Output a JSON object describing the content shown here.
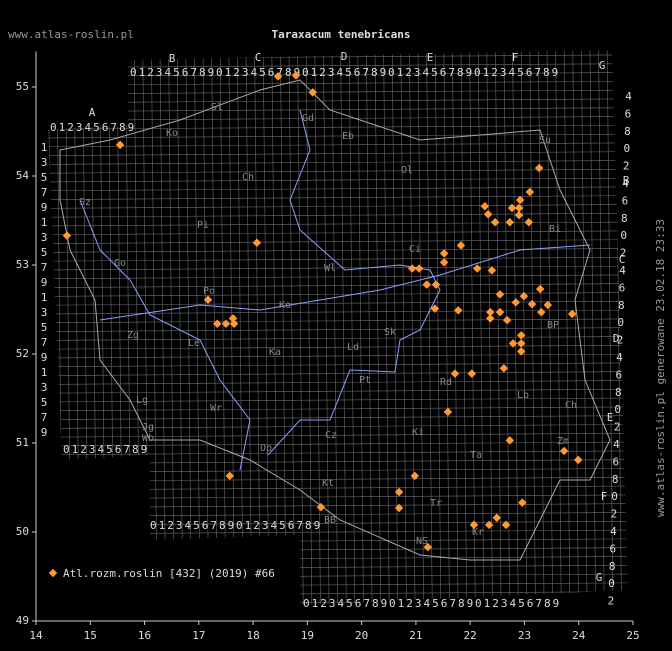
{
  "site": "www.atlas-roslin.pl",
  "footer": "www.atlas-roslin.pl generowane 23.02.18 23:33",
  "chart_data": {
    "type": "scatter",
    "title": "Taraxacum tenebricans",
    "series": [
      {
        "name": "Atl.rozm.roslin [432] (2019) #66",
        "color": "#ff9933",
        "x": [
          18.46,
          18.79,
          19.1,
          15.55,
          14.57,
          18.07,
          17.17,
          17.34,
          17.5,
          17.65,
          17.63,
          20.93,
          21.06,
          21.2,
          21.37,
          21.52,
          21.52,
          21.83,
          21.35,
          21.78,
          22.13,
          22.4,
          22.27,
          22.33,
          22.46,
          22.73,
          22.77,
          22.92,
          22.9,
          22.9,
          23.1,
          23.27,
          23.08,
          22.55,
          22.37,
          22.37,
          22.55,
          22.68,
          22.84,
          22.99,
          23.14,
          23.29,
          23.31,
          23.43,
          23.88,
          22.94,
          22.94,
          22.79,
          22.94,
          22.62,
          21.72,
          22.03,
          21.59,
          22.73,
          23.73,
          23.99,
          17.57,
          20.98,
          20.69,
          20.69,
          19.25,
          22.96,
          22.07,
          22.35,
          22.49,
          22.66,
          21.22
        ],
        "y": [
          55.12,
          55.13,
          54.94,
          54.35,
          53.33,
          53.25,
          52.61,
          52.34,
          52.34,
          52.34,
          52.4,
          52.96,
          52.96,
          52.78,
          52.78,
          53.13,
          53.03,
          53.22,
          52.51,
          52.49,
          52.96,
          52.94,
          53.66,
          53.57,
          53.48,
          53.48,
          53.64,
          53.73,
          53.56,
          53.64,
          53.82,
          54.09,
          53.48,
          52.67,
          52.47,
          52.4,
          52.47,
          52.38,
          52.58,
          52.65,
          52.56,
          52.73,
          52.47,
          52.55,
          52.45,
          52.21,
          52.12,
          52.12,
          52.03,
          51.84,
          51.78,
          51.78,
          51.35,
          51.03,
          50.91,
          50.81,
          50.63,
          50.63,
          50.45,
          50.27,
          50.28,
          50.33,
          50.08,
          50.08,
          50.16,
          50.08,
          49.83
        ]
      }
    ],
    "xlim": [
      14,
      25
    ],
    "ylim": [
      49,
      55.4
    ],
    "xticks": [
      14,
      15,
      16,
      17,
      18,
      19,
      20,
      21,
      22,
      23,
      24,
      25
    ],
    "yticks": [
      49,
      50,
      51,
      52,
      53,
      54,
      55
    ]
  },
  "map_labels": {
    "regions": [
      "Sl",
      "Ko",
      "Gd",
      "Eb",
      "Ol",
      "Su",
      "Ch",
      "Sz",
      "Pi",
      "Bi",
      "Ci",
      "Wl",
      "Go",
      "Po",
      "Ko",
      "Le",
      "Zg",
      "Ka",
      "Ld",
      "Sk",
      "Pt",
      "BP",
      "Rd",
      "Lb",
      "Lg",
      "Wr",
      "Jg",
      "Wb",
      "Cz",
      "Ki",
      "Ch",
      "Op",
      "Kt",
      "Ta",
      "Zm",
      "Tr",
      "BB",
      "NS",
      "Kr"
    ],
    "grid_columns": [
      "A",
      "B",
      "C",
      "D",
      "E",
      "F",
      "G"
    ],
    "grid_rows": [
      "B",
      "C",
      "D",
      "E",
      "F",
      "G"
    ],
    "digits": "0123456789",
    "even_digits": [
      "0",
      "2",
      "4",
      "6",
      "8"
    ],
    "odd_digits": [
      "1",
      "3",
      "5",
      "7",
      "9"
    ]
  }
}
